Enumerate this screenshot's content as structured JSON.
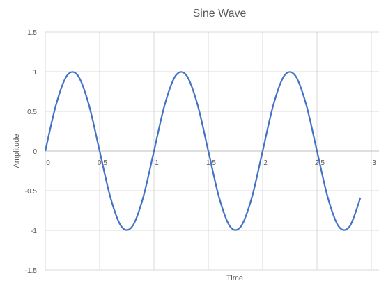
{
  "chart_data": {
    "type": "line",
    "title": "Sine Wave",
    "xlabel": "Time",
    "ylabel": "Amplitude",
    "xlim": [
      0,
      3
    ],
    "ylim": [
      -1.5,
      1.5
    ],
    "x_ticks": [
      "0",
      "0.5",
      "1",
      "1.5",
      "2",
      "2.5",
      "3"
    ],
    "y_ticks": [
      "1.5",
      "1",
      "0.5",
      "0",
      "-0.5",
      "-1",
      "-1.5"
    ],
    "grid": true,
    "legend": "none",
    "series": [
      {
        "color": "#4472C4",
        "x": [
          0,
          0.1,
          0.2,
          0.3,
          0.4,
          0.5,
          0.6,
          0.7,
          0.8,
          0.9,
          1.0,
          1.1,
          1.2,
          1.3,
          1.4,
          1.5,
          1.6,
          1.7,
          1.8,
          1.9,
          2.0,
          2.1,
          2.2,
          2.3,
          2.4,
          2.5,
          2.6,
          2.7,
          2.8,
          2.9
        ],
        "y": [
          0,
          0.588,
          0.951,
          0.951,
          0.588,
          0,
          -0.588,
          -0.951,
          -0.951,
          -0.588,
          0,
          0.588,
          0.951,
          0.951,
          0.588,
          0,
          -0.588,
          -0.951,
          -0.951,
          -0.588,
          0,
          0.588,
          0.951,
          0.951,
          0.588,
          0,
          -0.588,
          -0.951,
          -0.951,
          -0.588
        ]
      }
    ]
  }
}
